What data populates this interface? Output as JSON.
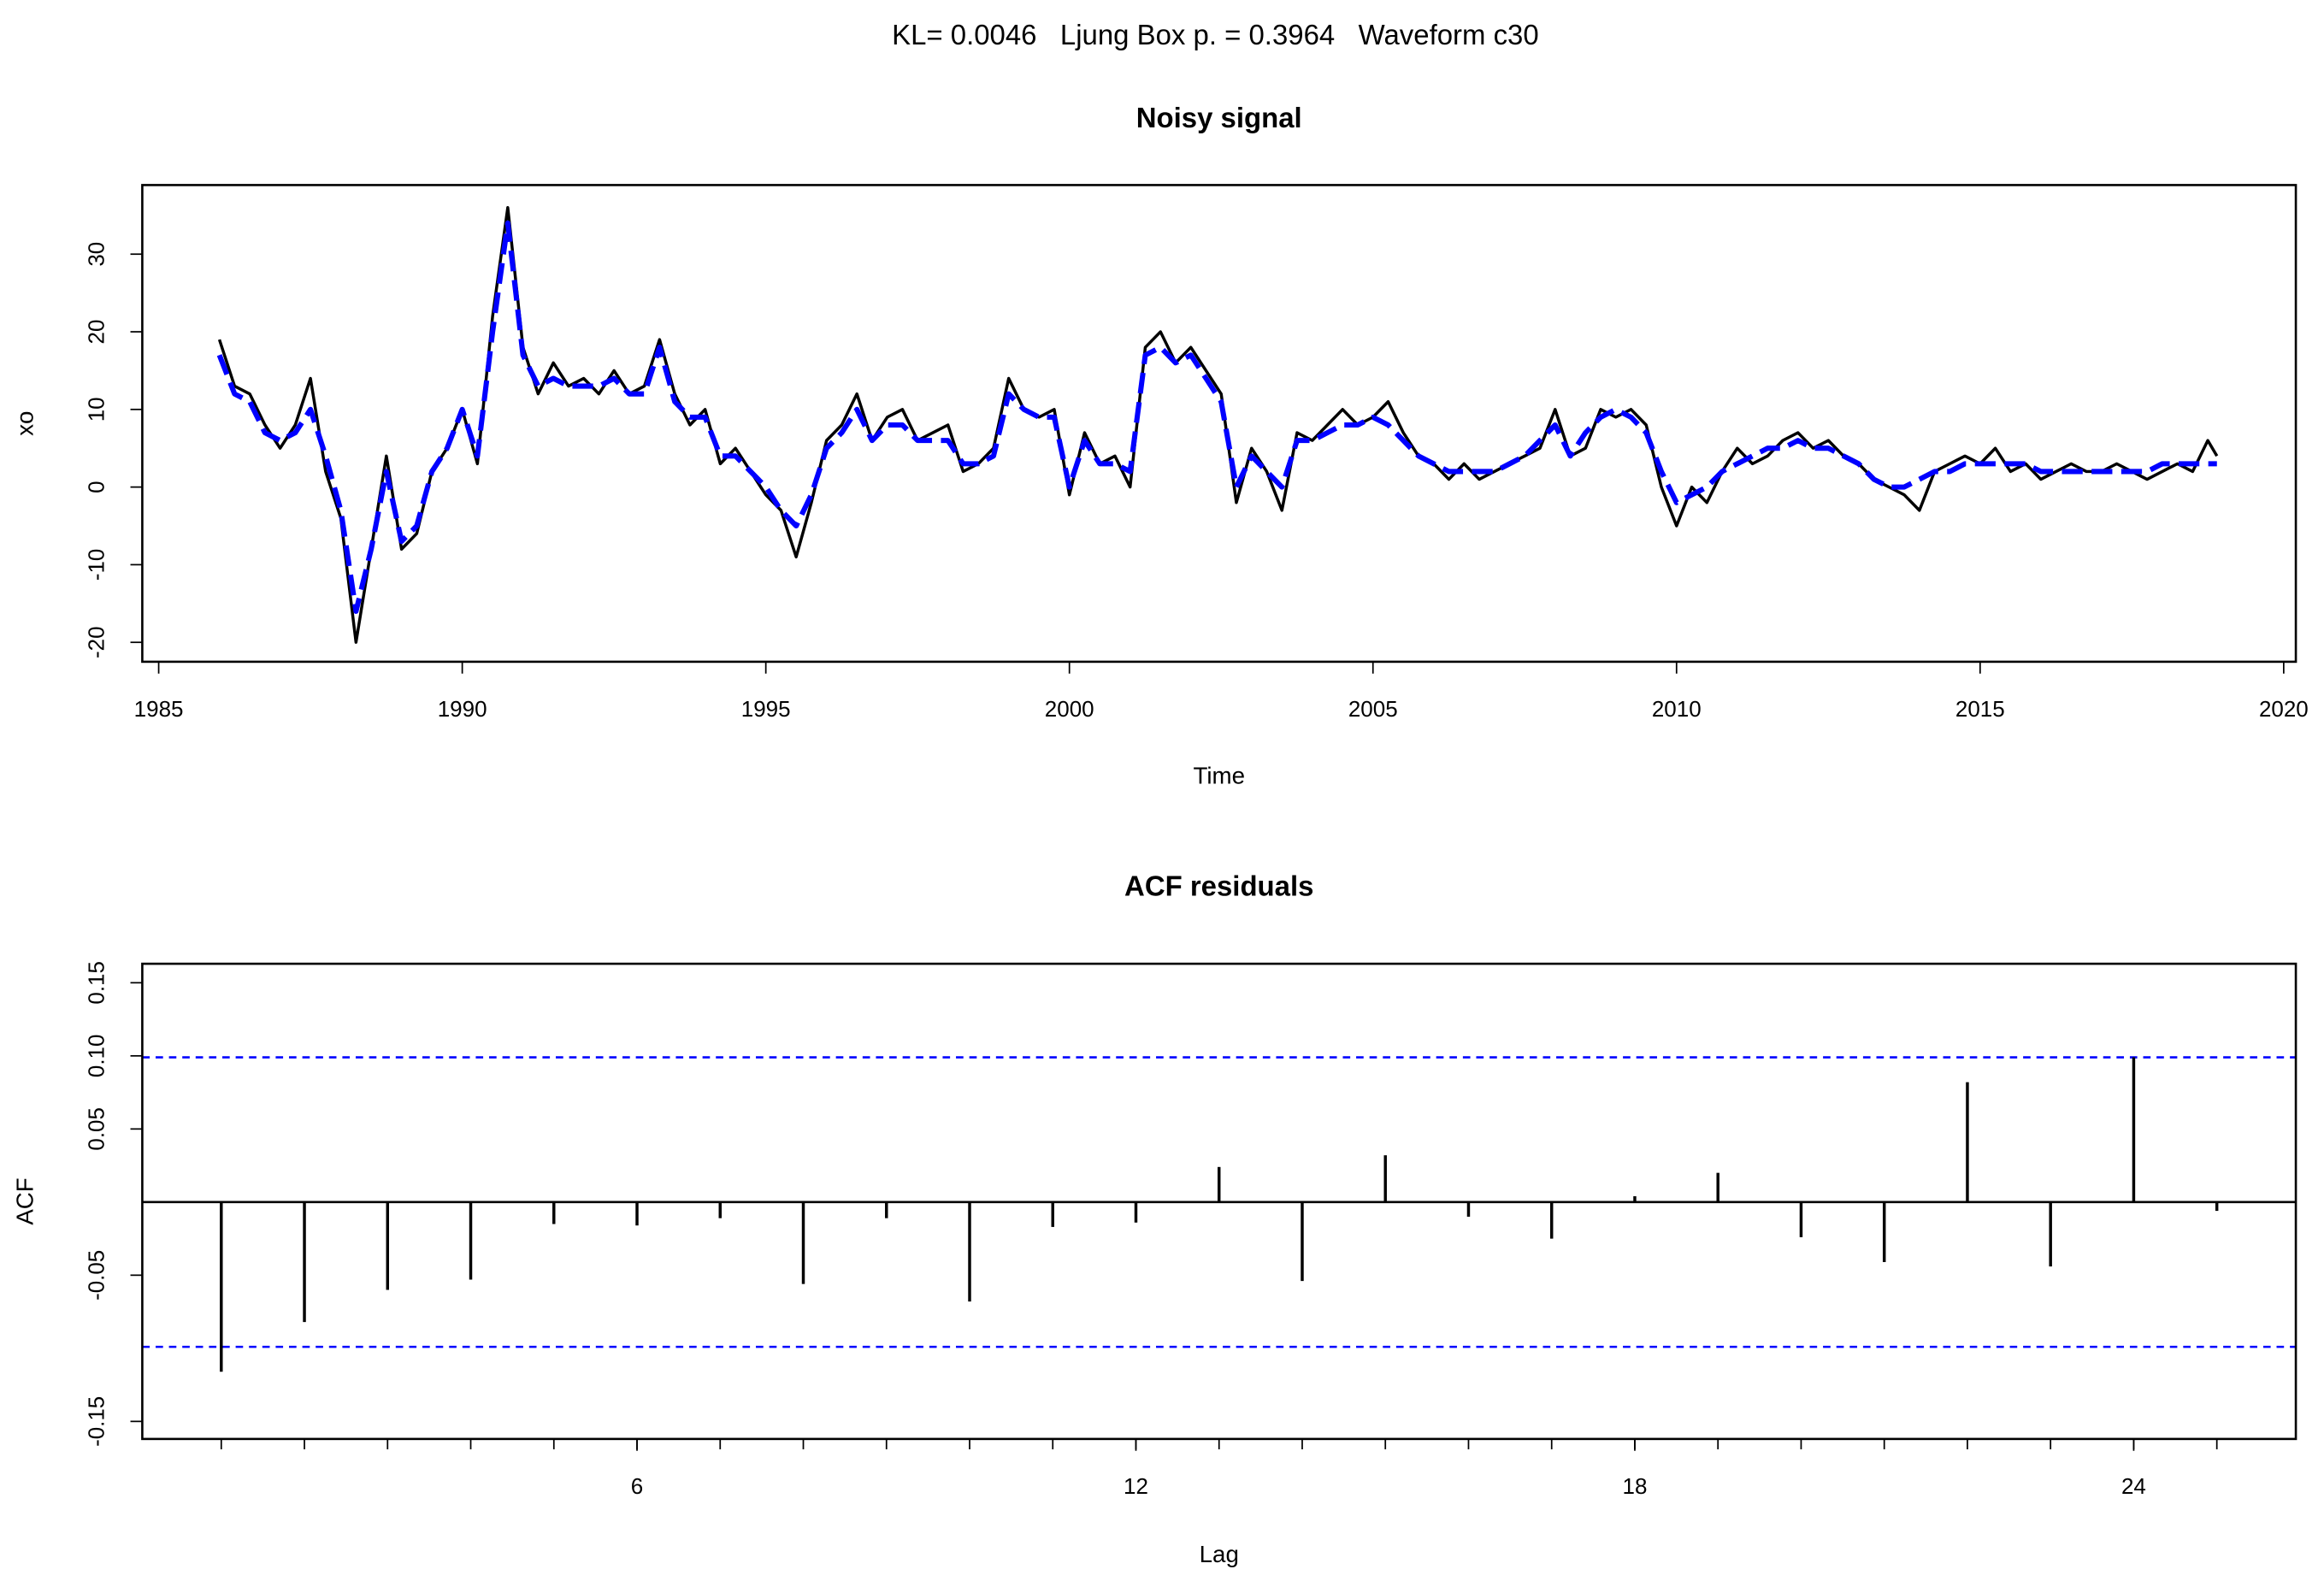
{
  "title": "KL= 0.0046   Ljung Box p. = 0.3964   Waveform c30",
  "chart_data": [
    {
      "type": "line",
      "title": "Noisy signal",
      "x_label": "Time",
      "y_label": "xo",
      "xlim": [
        1984.73,
        2020.2
      ],
      "ylim": [
        -22.5,
        38.9
      ],
      "xticks": [
        1985,
        1990,
        1995,
        2000,
        2005,
        2010,
        2015,
        2020
      ],
      "yticks": [
        -20,
        -10,
        0,
        10,
        20,
        30
      ],
      "x": [
        1986,
        1986.25,
        1986.5,
        1986.75,
        1987,
        1987.25,
        1987.5,
        1987.75,
        1988,
        1988.25,
        1988.5,
        1988.75,
        1989,
        1989.25,
        1989.5,
        1989.75,
        1990,
        1990.25,
        1990.5,
        1990.75,
        1991,
        1991.25,
        1991.5,
        1991.75,
        1992,
        1992.25,
        1992.5,
        1992.75,
        1993,
        1993.25,
        1993.5,
        1993.75,
        1994,
        1994.25,
        1994.5,
        1994.75,
        1995,
        1995.25,
        1995.5,
        1995.75,
        1996,
        1996.25,
        1996.5,
        1996.75,
        1997,
        1997.25,
        1997.5,
        1997.75,
        1998,
        1998.25,
        1998.5,
        1998.75,
        1999,
        1999.25,
        1999.5,
        1999.75,
        2000,
        2000.25,
        2000.5,
        2000.75,
        2001,
        2001.25,
        2001.5,
        2001.75,
        2002,
        2002.25,
        2002.5,
        2002.75,
        2003,
        2003.25,
        2003.5,
        2003.75,
        2004,
        2004.25,
        2004.5,
        2004.75,
        2005,
        2005.25,
        2005.5,
        2005.75,
        2006,
        2006.25,
        2006.5,
        2006.75,
        2007,
        2007.25,
        2007.5,
        2007.75,
        2008,
        2008.25,
        2008.5,
        2008.75,
        2009,
        2009.25,
        2009.5,
        2009.75,
        2010,
        2010.25,
        2010.5,
        2010.75,
        2011,
        2011.25,
        2011.5,
        2011.75,
        2012,
        2012.25,
        2012.5,
        2012.75,
        2013,
        2013.25,
        2013.5,
        2013.75,
        2014,
        2014.25,
        2014.5,
        2014.75,
        2015,
        2015.25,
        2015.5,
        2015.75,
        2016,
        2016.25,
        2016.5,
        2016.75,
        2017,
        2017.25,
        2017.5,
        2017.75,
        2018,
        2018.25,
        2018.5,
        2018.75,
        2018.9
      ],
      "series": [
        {
          "color": "#000000",
          "line_style": "solid",
          "values": [
            19,
            13,
            12,
            8,
            5,
            8,
            14,
            2,
            -4,
            -20,
            -8,
            4,
            -8,
            -6,
            2,
            5,
            10,
            3,
            22,
            36,
            18,
            12,
            16,
            13,
            14,
            12,
            15,
            12,
            13,
            19,
            12,
            8,
            10,
            3,
            5,
            2,
            -1,
            -3,
            -9,
            -2,
            6,
            8,
            12,
            6,
            9,
            10,
            6,
            7,
            8,
            2,
            3,
            5,
            14,
            10,
            9,
            10,
            -1,
            7,
            3,
            4,
            0,
            18,
            20,
            16,
            18,
            15,
            12,
            -2,
            5,
            2,
            -3,
            7,
            6,
            8,
            10,
            8,
            9,
            11,
            7,
            4,
            3,
            1,
            3,
            1,
            2,
            3,
            4,
            5,
            10,
            4,
            5,
            10,
            9,
            10,
            8,
            0,
            -5,
            0,
            -2,
            2,
            5,
            3,
            4,
            6,
            7,
            5,
            6,
            4,
            3,
            1,
            0,
            -1,
            -3,
            2,
            3,
            4,
            3,
            5,
            2,
            3,
            1,
            2,
            3,
            2,
            2,
            3,
            2,
            1,
            2,
            3,
            2,
            6,
            4
          ]
        },
        {
          "color": "#0000ff",
          "line_style": "dashed",
          "values": [
            17,
            12,
            11,
            7,
            6,
            7,
            10,
            4,
            -3,
            -16,
            -8,
            2,
            -7,
            -5,
            2,
            5,
            10,
            4,
            20,
            34,
            17,
            13,
            14,
            13,
            13,
            13,
            14,
            12,
            12,
            18,
            11,
            9,
            9,
            4,
            4,
            2,
            0,
            -3,
            -5,
            -1,
            5,
            7,
            10,
            6,
            8,
            8,
            6,
            6,
            6,
            3,
            3,
            4,
            12,
            10,
            9,
            9,
            0,
            6,
            3,
            3,
            2,
            17,
            18,
            16,
            17,
            14,
            11,
            0,
            4,
            2,
            0,
            6,
            6,
            7,
            8,
            8,
            9,
            8,
            6,
            4,
            3,
            2,
            2,
            2,
            2,
            3,
            4,
            6,
            8,
            4,
            7,
            9,
            10,
            9,
            7,
            2,
            -2,
            -1,
            0,
            2,
            3,
            4,
            5,
            5,
            6,
            5,
            5,
            4,
            3,
            1,
            0,
            0,
            1,
            2,
            2,
            3,
            3,
            3,
            3,
            3,
            2,
            2,
            2,
            2,
            2,
            2,
            2,
            2,
            3,
            3,
            3,
            3,
            3
          ]
        }
      ]
    },
    {
      "type": "bar",
      "title": "ACF residuals",
      "x_label": "Lag",
      "y_label": "ACF",
      "xlim": [
        0.05,
        25.95
      ],
      "ylim": [
        -0.162,
        0.163
      ],
      "xticks": [
        6,
        12,
        18,
        24
      ],
      "yticks": [
        -0.15,
        -0.05,
        0.05,
        {
          "value": 0.1,
          "label": "0.10"
        },
        0.15
      ],
      "color": "#000000",
      "hline_color": "#0000ff",
      "hlines": [
        -0.099,
        0.099
      ],
      "x": [
        1,
        2,
        3,
        4,
        5,
        6,
        7,
        8,
        9,
        10,
        11,
        12,
        13,
        14,
        15,
        16,
        17,
        18,
        19,
        20,
        21,
        22,
        23,
        24,
        25
      ],
      "values": [
        -0.116,
        -0.082,
        -0.06,
        -0.053,
        -0.015,
        -0.016,
        -0.011,
        -0.056,
        -0.011,
        -0.068,
        -0.017,
        -0.014,
        0.024,
        -0.054,
        0.032,
        -0.01,
        -0.025,
        0.004,
        0.02,
        -0.024,
        -0.041,
        0.082,
        -0.044,
        0.099,
        -0.006
      ]
    }
  ]
}
